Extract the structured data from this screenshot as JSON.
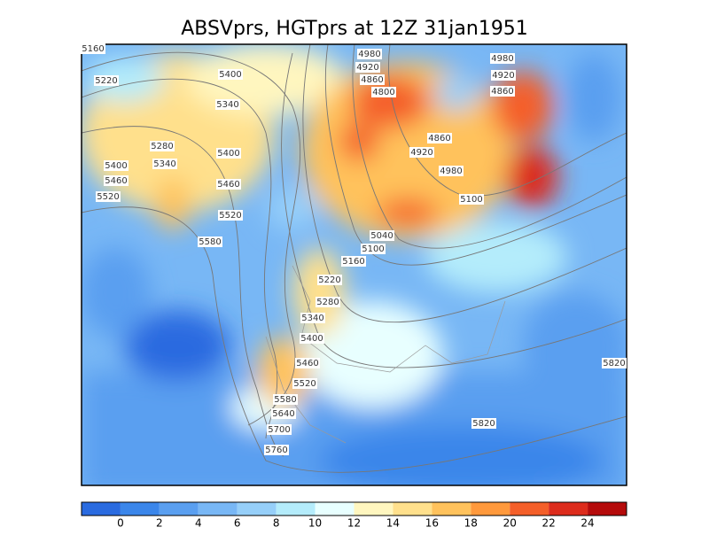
{
  "title": "ABSVprs, HGTprs at 12Z  31jan1951",
  "contour_labels": [
    "5160",
    "5220",
    "5400",
    "5340",
    "5280",
    "5340",
    "5400",
    "5400",
    "5460",
    "5520",
    "5460",
    "5520",
    "5580",
    "4980",
    "4920",
    "4860",
    "4800",
    "4980",
    "4920",
    "4860",
    "4860",
    "4920",
    "4980",
    "5100",
    "5040",
    "5100",
    "5160",
    "5220",
    "5280",
    "5340",
    "5400",
    "5460",
    "5520",
    "5580",
    "5640",
    "5700",
    "5760",
    "5820",
    "5820"
  ],
  "colorbar": {
    "levels": [
      0,
      2,
      4,
      6,
      8,
      10,
      12,
      14,
      16,
      18,
      20,
      22,
      24
    ],
    "colors": [
      "#2a6be0",
      "#3b86ea",
      "#5a9ff0",
      "#78b7f5",
      "#96cff9",
      "#b4ecfb",
      "#e8ffff",
      "#fff6bf",
      "#ffe08c",
      "#ffc25c",
      "#ff993c",
      "#f45f29",
      "#dd2c1c",
      "#b50b0b"
    ]
  }
}
